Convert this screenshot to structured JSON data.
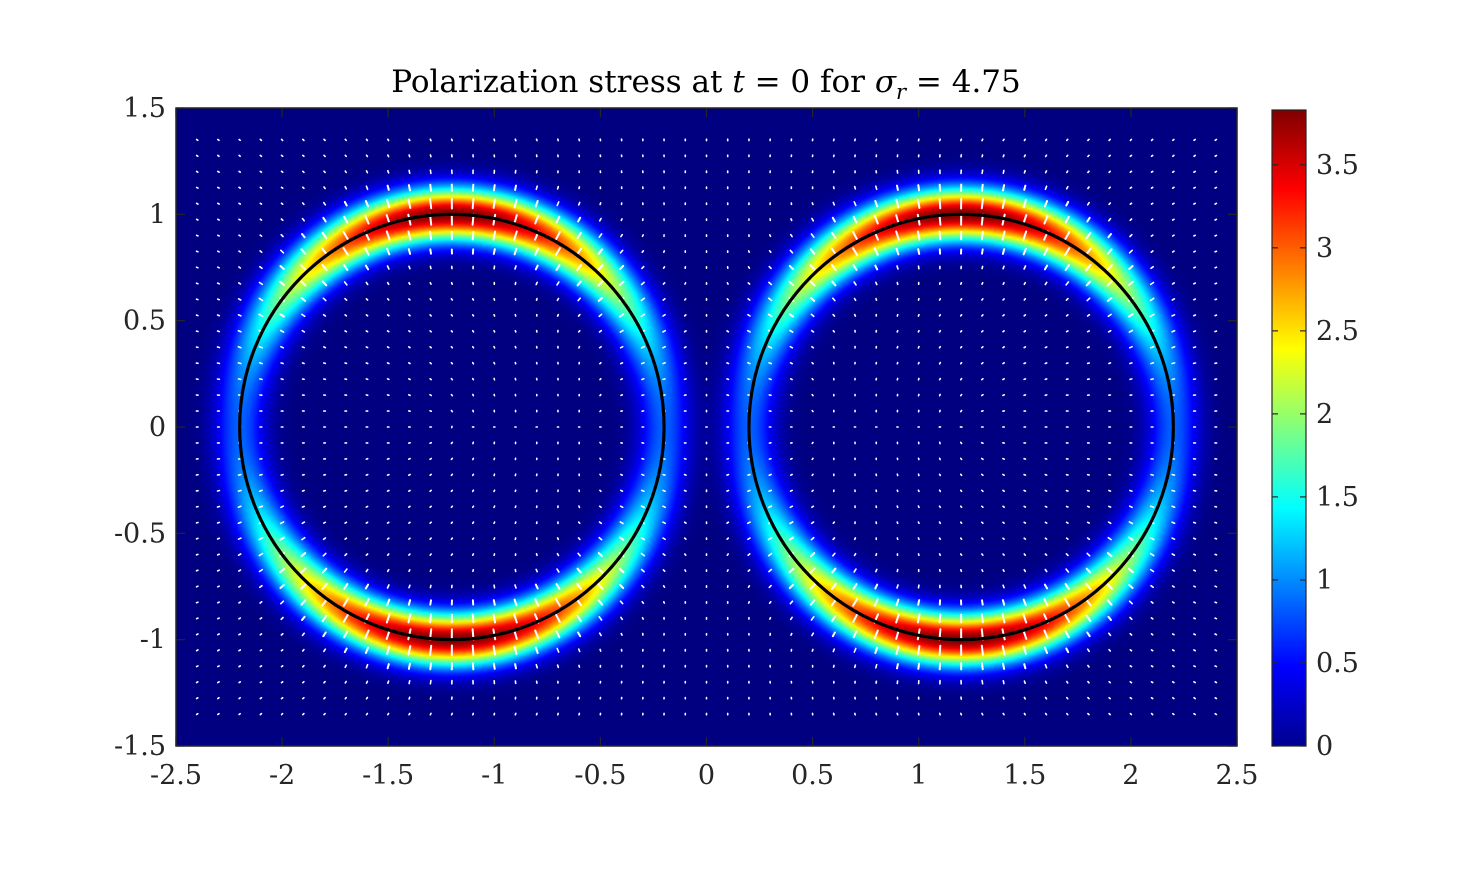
{
  "chart_data": {
    "type": "heatmap",
    "title": {
      "prefix": "Polarization stress at ",
      "t_symbol": "t",
      "t_eq": " = 0 for ",
      "sigma_symbol": "σ",
      "sigma_sub": "r",
      "sigma_eq": " = 4.75"
    },
    "xlim": [
      -2.5,
      2.5
    ],
    "ylim": [
      -1.5,
      1.5
    ],
    "x_ticks": [
      -2.5,
      -2,
      -1.5,
      -1,
      -0.5,
      0,
      0.5,
      1,
      1.5,
      2,
      2.5
    ],
    "x_tick_labels": [
      "-2.5",
      "-2",
      "-1.5",
      "-1",
      "-0.5",
      "0",
      "0.5",
      "1",
      "1.5",
      "2",
      "2.5"
    ],
    "y_ticks": [
      1.5,
      1,
      0.5,
      0,
      -0.5,
      -1,
      -1.5
    ],
    "y_tick_labels": [
      "1.5",
      "1",
      "0.5",
      "0",
      "-0.5",
      "-1",
      "-1.5"
    ],
    "colorbar": {
      "colormap": "jet",
      "range": [
        0,
        3.83
      ],
      "ticks": [
        0,
        0.5,
        1,
        1.5,
        2,
        2.5,
        3,
        3.5
      ],
      "tick_labels": [
        "0",
        "0.5",
        "1",
        "1.5",
        "2",
        "2.5",
        "3",
        "3.5"
      ]
    },
    "circles": [
      {
        "center": [
          -1.2,
          0
        ],
        "radius": 1.0,
        "color": "#000000"
      },
      {
        "center": [
          1.2,
          0
        ],
        "radius": 1.0,
        "color": "#000000"
      }
    ],
    "field": {
      "description_free": true,
      "peak_value": 3.83,
      "ring_width": 0.12,
      "angular_dependence": "cos2"
    },
    "quiver": {
      "color": "#ffffff",
      "grid_spacing_x": 0.1,
      "grid_spacing_y": 0.075
    },
    "grid": false,
    "background_color": "#00008f"
  }
}
